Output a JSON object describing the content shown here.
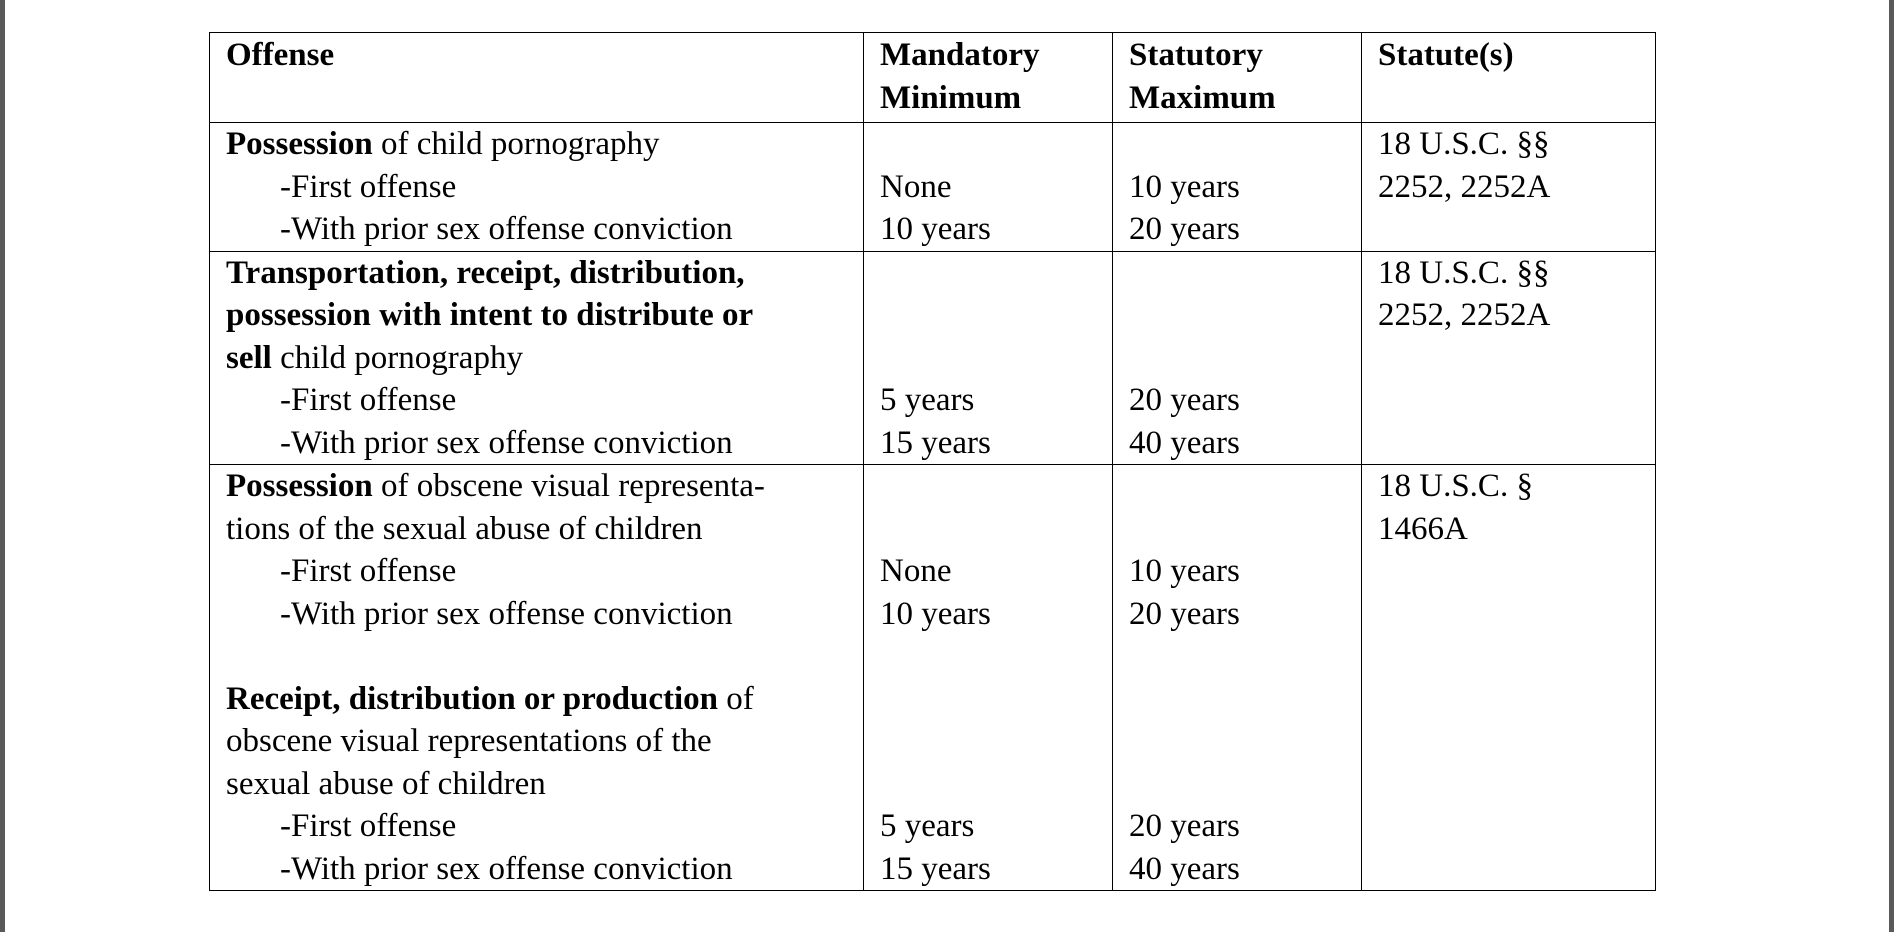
{
  "table": {
    "headers": {
      "offense": "Offense",
      "min_line1": "Mandatory",
      "min_line2": "Minimum",
      "max_line1": "Statutory",
      "max_line2": "Maximum",
      "statute": "Statute(s)"
    },
    "rows": [
      {
        "title_bold": "Possession",
        "title_rest": " of child pornography",
        "first_label": "-First offense",
        "prior_label": "-With prior sex offense conviction",
        "first_min": "None",
        "prior_min": "10 years",
        "first_max": "10 years",
        "prior_max": "20 years",
        "statute_line1": "18 U.S.C. §§",
        "statute_line2": "2252,  2252A"
      },
      {
        "title_bold_line1": "Transportation, receipt, distribution,",
        "title_bold_line2": "possession with intent to distribute or",
        "title_bold_line3": "sell",
        "title_rest": " child pornography",
        "first_label": "-First offense",
        "prior_label": "-With prior sex offense conviction",
        "first_min": "5 years",
        "prior_min": "15 years",
        "first_max": "20 years",
        "prior_max": "40 years",
        "statute_line1": "18 U.S.C. §§",
        "statute_line2": "2252, 2252A"
      },
      {
        "title_bold": "Possession",
        "title_rest_line1": " of obscene visual representa-",
        "title_rest_line2": "tions of the sexual abuse of children",
        "first_label": "-First offense",
        "prior_label": "-With prior sex offense conviction",
        "first_min": "None",
        "prior_min": "10 years",
        "first_max": "10 years",
        "prior_max": "20 years",
        "sub_title_bold": "Receipt, distribution or production",
        "sub_title_rest_line1": " of",
        "sub_title_rest_line2": "obscene visual representations of the",
        "sub_title_rest_line3": "sexual abuse of children",
        "sub_first_label": "-First offense",
        "sub_prior_label": "-With prior sex offense conviction",
        "sub_first_min": "5 years",
        "sub_prior_min": "15 years",
        "sub_first_max": "20 years",
        "sub_prior_max": "40 years",
        "statute_line1": "18 U.S.C. §",
        "statute_line2": "1466A"
      }
    ]
  }
}
